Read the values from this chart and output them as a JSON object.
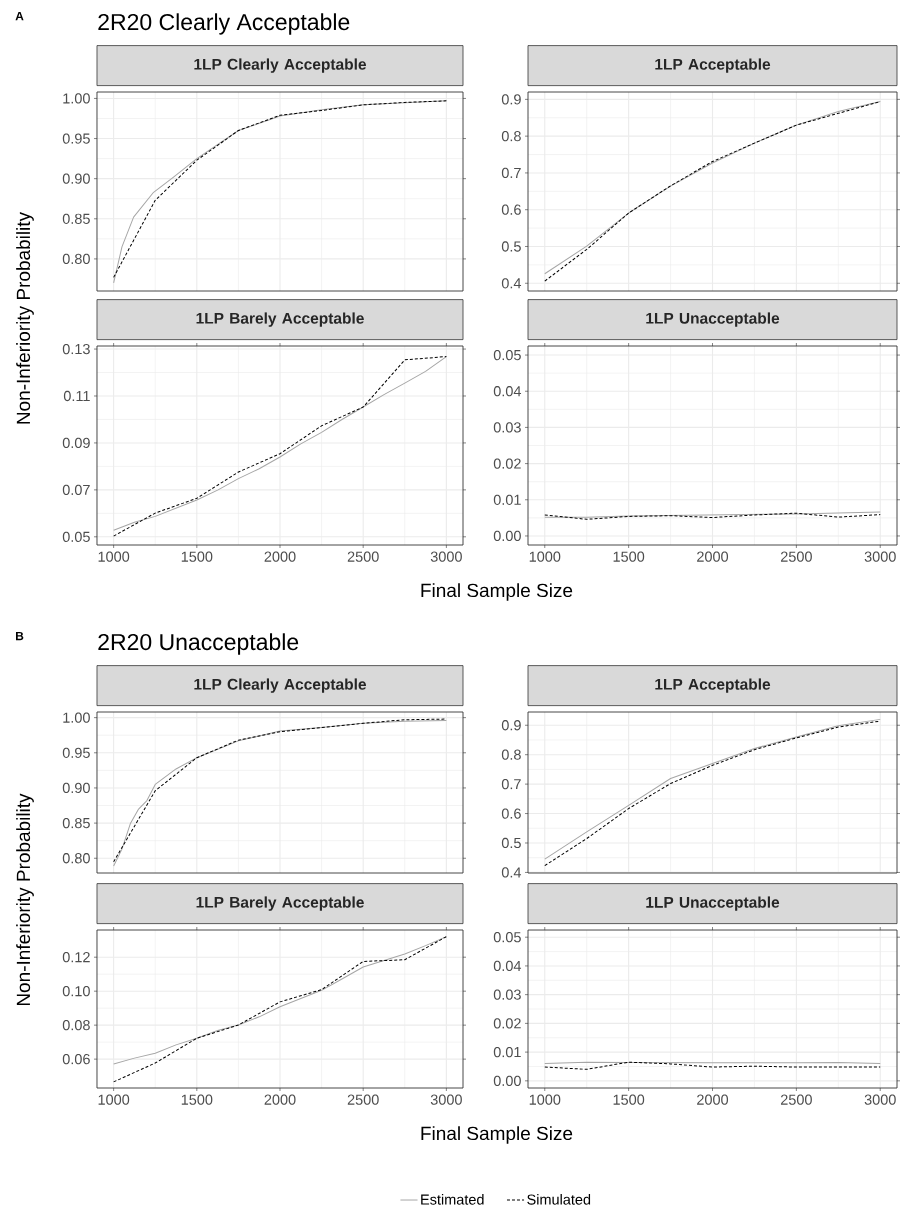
{
  "chart_data": [
    {
      "type": "line",
      "title": "1LP Clearly Acceptable",
      "annotations": [
        "A",
        "2R20 Clearly Acceptable"
      ],
      "ylabel": "Non-Inferiority Probability",
      "xlim": [
        900,
        3100
      ],
      "xticks": [
        1000,
        1500,
        2000,
        2500,
        3000
      ],
      "ylim": [
        0.76,
        1.008
      ],
      "yticks": [
        {
          "value": 0.8,
          "label": "0.80"
        },
        0.85,
        {
          "value": 0.9,
          "label": "0.90"
        },
        0.95,
        {
          "value": 1.0,
          "label": "1.00"
        }
      ],
      "tick_labels": "y",
      "grid": true,
      "series": [
        {
          "color": "#a6a6a6",
          "line_style": "solid",
          "x": [
            1000,
            1050,
            1120,
            1240,
            1360,
            1500,
            1750,
            2000,
            2250,
            2500,
            3000
          ],
          "values": [
            0.77,
            0.815,
            0.852,
            0.883,
            0.902,
            0.925,
            0.96,
            0.978,
            0.986,
            0.992,
            0.997
          ]
        },
        {
          "color": "#000000",
          "line_style": "dashed",
          "x": [
            1000,
            1250,
            1500,
            1750,
            2000,
            2250,
            2500,
            2750,
            3000
          ],
          "values": [
            0.777,
            0.873,
            0.923,
            0.96,
            0.979,
            0.985,
            0.992,
            0.995,
            0.997
          ]
        }
      ]
    },
    {
      "type": "line",
      "title": "1LP Acceptable",
      "xlim": [
        900,
        3100
      ],
      "xticks": [
        1000,
        1500,
        2000,
        2500,
        3000
      ],
      "ylim": [
        0.379,
        0.92
      ],
      "yticks": [
        0.4,
        0.5,
        0.6,
        0.7,
        0.8,
        0.9
      ],
      "tick_labels": "y",
      "grid": true,
      "series": [
        {
          "color": "#a6a6a6",
          "line_style": "solid",
          "x": [
            1000,
            1250,
            1500,
            1750,
            2000,
            2250,
            2500,
            2750,
            3000
          ],
          "values": [
            0.426,
            0.501,
            0.591,
            0.664,
            0.727,
            0.781,
            0.83,
            0.867,
            0.894
          ]
        },
        {
          "color": "#000000",
          "line_style": "dashed",
          "x": [
            1000,
            1250,
            1500,
            1750,
            2000,
            2250,
            2500,
            2750,
            3000
          ],
          "values": [
            0.406,
            0.492,
            0.591,
            0.665,
            0.731,
            0.781,
            0.83,
            0.862,
            0.894
          ]
        }
      ]
    },
    {
      "type": "line",
      "title": "1LP Barely Acceptable",
      "xlabel": "Final Sample Size",
      "xlim": [
        900,
        3100
      ],
      "xticks": [
        1000,
        1500,
        2000,
        2500,
        3000
      ],
      "ylim": [
        0.0465,
        0.1313
      ],
      "yticks": [
        0.05,
        0.07,
        0.09,
        0.11,
        0.13
      ],
      "grid": true,
      "series": [
        {
          "color": "#a6a6a6",
          "line_style": "solid",
          "x": [
            1000,
            1125,
            1250,
            1375,
            1500,
            1625,
            1750,
            1875,
            2000,
            2125,
            2250,
            2375,
            2500,
            2625,
            2750,
            2875,
            3000
          ],
          "values": [
            0.0528,
            0.0562,
            0.0587,
            0.0622,
            0.0657,
            0.0699,
            0.0748,
            0.079,
            0.084,
            0.0896,
            0.0945,
            0.1001,
            0.1053,
            0.1106,
            0.1155,
            0.1205,
            0.1268
          ]
        },
        {
          "color": "#000000",
          "line_style": "dashed",
          "x": [
            1000,
            1250,
            1500,
            1750,
            2000,
            2250,
            2500,
            2750,
            3000
          ],
          "values": [
            0.0503,
            0.0601,
            0.0664,
            0.0776,
            0.0854,
            0.0973,
            0.1053,
            0.1254,
            0.1268
          ]
        }
      ]
    },
    {
      "type": "line",
      "title": "1LP Unacceptable",
      "xlim": [
        900,
        3100
      ],
      "xticks": [
        1000,
        1500,
        2000,
        2500,
        3000
      ],
      "ylim": [
        -0.0025,
        0.0525
      ],
      "yticks": [
        {
          "value": 0.0,
          "label": "0.00"
        },
        0.01,
        0.02,
        0.03,
        0.04,
        0.05
      ],
      "grid": true,
      "series": [
        {
          "color": "#a6a6a6",
          "line_style": "solid",
          "x": [
            1000,
            1250,
            1500,
            2000,
            2500,
            3000
          ],
          "values": [
            0.0052,
            0.0052,
            0.0055,
            0.0058,
            0.0061,
            0.0066
          ]
        },
        {
          "color": "#000000",
          "line_style": "dashed",
          "x": [
            1000,
            1250,
            1500,
            1750,
            2000,
            2250,
            2500,
            2750,
            3000
          ],
          "values": [
            0.0058,
            0.0046,
            0.0054,
            0.0056,
            0.0051,
            0.0058,
            0.0063,
            0.0052,
            0.0059
          ]
        }
      ]
    },
    {
      "type": "line",
      "title": "1LP Clearly Acceptable",
      "annotations": [
        "B",
        "2R20 Unacceptable"
      ],
      "ylabel": "Non-Inferiority Probability",
      "xlim": [
        900,
        3100
      ],
      "xticks": [
        1000,
        1500,
        2000,
        2500,
        3000
      ],
      "ylim": [
        0.779,
        1.008
      ],
      "yticks": [
        {
          "value": 0.8,
          "label": "0.80"
        },
        0.85,
        {
          "value": 0.9,
          "label": "0.90"
        },
        0.95,
        {
          "value": 1.0,
          "label": "1.00"
        }
      ],
      "tick_labels": "y",
      "grid": true,
      "series": [
        {
          "color": "#a6a6a6",
          "line_style": "solid",
          "x": [
            1000,
            1050,
            1100,
            1150,
            1200,
            1250,
            1375,
            1500,
            1750,
            2000,
            2250,
            2500,
            2750,
            3000
          ],
          "values": [
            0.789,
            0.813,
            0.849,
            0.87,
            0.882,
            0.905,
            0.927,
            0.943,
            0.967,
            0.981,
            0.986,
            0.992,
            0.995,
            0.996
          ]
        },
        {
          "color": "#000000",
          "line_style": "dashed",
          "x": [
            1000,
            1250,
            1500,
            1750,
            2000,
            2250,
            2500,
            2750,
            3000
          ],
          "values": [
            0.795,
            0.896,
            0.943,
            0.968,
            0.98,
            0.986,
            0.992,
            0.997,
            0.998
          ]
        }
      ]
    },
    {
      "type": "line",
      "title": "1LP Acceptable",
      "xlim": [
        900,
        3100
      ],
      "xticks": [
        1000,
        1500,
        2000,
        2500,
        3000
      ],
      "ylim": [
        0.398,
        0.945
      ],
      "yticks": [
        0.4,
        0.5,
        0.6,
        0.7,
        0.8,
        0.9
      ],
      "tick_labels": "y",
      "grid": true,
      "series": [
        {
          "color": "#a6a6a6",
          "line_style": "solid",
          "x": [
            1000,
            1250,
            1500,
            1750,
            2000,
            2250,
            2500,
            2750,
            3000
          ],
          "values": [
            0.445,
            0.538,
            0.628,
            0.719,
            0.77,
            0.821,
            0.86,
            0.898,
            0.92
          ]
        },
        {
          "color": "#000000",
          "line_style": "dashed",
          "x": [
            1000,
            1250,
            1500,
            1750,
            2000,
            2250,
            2500,
            2750,
            3000
          ],
          "values": [
            0.423,
            0.515,
            0.617,
            0.702,
            0.764,
            0.817,
            0.857,
            0.894,
            0.914
          ]
        }
      ]
    },
    {
      "type": "line",
      "title": "1LP Barely Acceptable",
      "xlabel": "Final Sample Size",
      "xlim": [
        900,
        3100
      ],
      "xticks": [
        1000,
        1500,
        2000,
        2500,
        3000
      ],
      "ylim": [
        0.043,
        0.136
      ],
      "yticks": [
        0.06,
        0.08,
        {
          "value": 0.1,
          "label": "0.10"
        },
        0.12
      ],
      "grid": true,
      "series": [
        {
          "color": "#a6a6a6",
          "line_style": "solid",
          "x": [
            1000,
            1125,
            1250,
            1375,
            1500,
            1625,
            1750,
            1875,
            2000,
            2125,
            2250,
            2375,
            2500,
            2625,
            2750,
            2875,
            3000
          ],
          "values": [
            0.0571,
            0.0606,
            0.0635,
            0.0684,
            0.0723,
            0.0768,
            0.0801,
            0.0849,
            0.0908,
            0.0957,
            0.1005,
            0.1073,
            0.1142,
            0.1181,
            0.1219,
            0.1268,
            0.1321
          ]
        },
        {
          "color": "#000000",
          "line_style": "dashed",
          "x": [
            1000,
            1250,
            1500,
            1750,
            2000,
            2250,
            2500,
            2750,
            3000
          ],
          "values": [
            0.0466,
            0.0577,
            0.0723,
            0.0801,
            0.0937,
            0.1009,
            0.1175,
            0.1185,
            0.1321
          ]
        }
      ]
    },
    {
      "type": "line",
      "title": "1LP Unacceptable",
      "legend": "bottom",
      "xlim": [
        900,
        3100
      ],
      "xticks": [
        1000,
        1500,
        2000,
        2500,
        3000
      ],
      "ylim": [
        -0.0025,
        0.0525
      ],
      "yticks": [
        {
          "value": 0.0,
          "label": "0.00"
        },
        0.01,
        0.02,
        0.03,
        0.04,
        0.05
      ],
      "grid": true,
      "series": [
        {
          "name": "Estimated",
          "color": "#a6a6a6",
          "line_style": "solid",
          "x": [
            1000,
            1250,
            1500,
            2000,
            2500,
            2750,
            3000
          ],
          "values": [
            0.006,
            0.0065,
            0.0064,
            0.0063,
            0.0063,
            0.0064,
            0.006
          ]
        },
        {
          "name": "Simulated",
          "color": "#000000",
          "line_style": "dashed",
          "x": [
            1000,
            1250,
            1500,
            1750,
            2000,
            2250,
            2500,
            2750,
            3000
          ],
          "values": [
            0.0048,
            0.004,
            0.0065,
            0.0059,
            0.0048,
            0.0051,
            0.0048,
            0.0048,
            0.0048
          ]
        }
      ]
    }
  ]
}
